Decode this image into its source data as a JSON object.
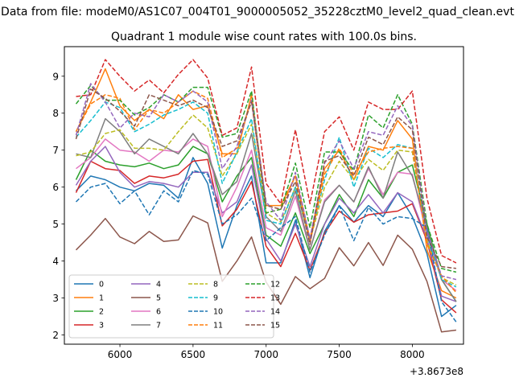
{
  "chart_data": {
    "type": "line",
    "suptitle": "Data from file: modeM0/AS1C07_004T01_9000005052_35228cztM0_level2_quad_clean.evt",
    "title": "Quadrant 1 module wise count rates with 100.0s bins.",
    "xlabel": "",
    "ylabel": "",
    "x_offset_label": "+3.8673e8",
    "xlim": [
      5620,
      8350
    ],
    "ylim": [
      1.75,
      9.8
    ],
    "xticks": [
      6000,
      6500,
      7000,
      7500,
      8000
    ],
    "yticks": [
      2,
      3,
      4,
      5,
      6,
      7,
      8,
      9
    ],
    "grid": false,
    "legend_position": "lower-left",
    "legend_columns": 4,
    "x": [
      5700,
      5800,
      5900,
      6000,
      6100,
      6200,
      6300,
      6400,
      6500,
      6600,
      6700,
      6800,
      6900,
      7000,
      7100,
      7200,
      7300,
      7400,
      7500,
      7600,
      7700,
      7800,
      7900,
      8000,
      8100,
      8200,
      8300
    ],
    "series": [
      {
        "name": "0",
        "color": "#1f77b4",
        "dash": "solid",
        "values": [
          5.9,
          6.3,
          6.2,
          6.0,
          5.9,
          6.1,
          6.05,
          5.7,
          6.8,
          6.1,
          4.35,
          5.5,
          6.3,
          3.95,
          3.95,
          5.1,
          3.55,
          4.8,
          5.5,
          5.05,
          5.5,
          5.2,
          5.85,
          5.2,
          4.2,
          2.5,
          2.8
        ]
      },
      {
        "name": "1",
        "color": "#ff7f0e",
        "dash": "solid",
        "values": [
          7.5,
          8.3,
          9.2,
          8.2,
          7.8,
          8.1,
          7.85,
          8.5,
          8.1,
          8.2,
          6.9,
          6.9,
          8.5,
          5.5,
          5.5,
          6.3,
          4.6,
          6.5,
          7.0,
          6.2,
          7.1,
          7.0,
          7.8,
          7.3,
          4.3,
          3.2,
          3.0
        ]
      },
      {
        "name": "2",
        "color": "#2ca02c",
        "dash": "solid",
        "values": [
          6.2,
          7.0,
          6.7,
          6.6,
          6.55,
          6.65,
          6.5,
          6.6,
          7.1,
          6.9,
          5.6,
          6.3,
          6.8,
          4.7,
          4.4,
          5.3,
          4.2,
          5.0,
          5.8,
          5.2,
          6.2,
          5.7,
          6.4,
          6.6,
          5.0,
          3.5,
          2.9
        ]
      },
      {
        "name": "3",
        "color": "#d62728",
        "dash": "solid",
        "values": [
          5.85,
          6.7,
          6.5,
          6.45,
          6.1,
          6.3,
          6.25,
          6.35,
          6.7,
          6.75,
          4.95,
          5.4,
          6.15,
          4.4,
          3.85,
          4.75,
          3.75,
          4.75,
          5.35,
          5.05,
          5.25,
          5.3,
          5.35,
          5.55,
          4.55,
          2.95,
          2.6
        ]
      },
      {
        "name": "4",
        "color": "#9467bd",
        "dash": "solid",
        "values": [
          6.05,
          6.7,
          7.1,
          6.4,
          6.0,
          6.15,
          6.1,
          6.0,
          6.4,
          6.4,
          5.3,
          5.6,
          6.6,
          4.6,
          4.0,
          5.0,
          3.85,
          5.0,
          5.7,
          5.3,
          5.8,
          5.3,
          5.85,
          5.6,
          4.6,
          3.05,
          2.9
        ]
      },
      {
        "name": "5",
        "color": "#8c564b",
        "dash": "solid",
        "values": [
          4.3,
          4.7,
          5.15,
          4.65,
          4.47,
          4.8,
          4.53,
          4.57,
          5.22,
          5.03,
          3.45,
          4.0,
          4.65,
          3.43,
          2.83,
          3.58,
          3.25,
          3.53,
          4.36,
          3.87,
          4.5,
          3.88,
          4.7,
          4.32,
          3.45,
          2.08,
          2.13
        ]
      },
      {
        "name": "6",
        "color": "#e377c2",
        "dash": "solid",
        "values": [
          6.5,
          6.8,
          7.3,
          7.0,
          6.95,
          6.7,
          7.0,
          6.95,
          7.3,
          7.1,
          5.2,
          6.0,
          7.0,
          4.9,
          4.7,
          5.75,
          4.3,
          5.65,
          6.05,
          5.6,
          6.5,
          5.8,
          6.4,
          6.35,
          4.7,
          3.5,
          3.2
        ]
      },
      {
        "name": "7",
        "color": "#7f7f7f",
        "dash": "solid",
        "values": [
          6.9,
          6.8,
          7.85,
          7.5,
          6.9,
          7.3,
          7.1,
          6.9,
          7.45,
          6.9,
          5.8,
          6.15,
          7.45,
          5.2,
          4.8,
          5.9,
          4.3,
          5.6,
          6.05,
          5.6,
          6.55,
          5.7,
          6.95,
          6.3,
          4.9,
          3.5,
          2.9
        ]
      },
      {
        "name": "8",
        "color": "#bcbd22",
        "dash": "dashed",
        "values": [
          6.85,
          6.95,
          7.45,
          7.55,
          7.05,
          7.05,
          7.0,
          7.5,
          7.95,
          7.6,
          6.3,
          6.9,
          7.7,
          5.3,
          5.05,
          6.0,
          4.55,
          6.0,
          6.7,
          6.2,
          6.75,
          6.45,
          7.0,
          6.95,
          4.55,
          3.55,
          3.35
        ]
      },
      {
        "name": "9",
        "color": "#17becf",
        "dash": "dashed",
        "values": [
          7.35,
          7.8,
          8.3,
          8.15,
          7.5,
          7.7,
          7.95,
          8.1,
          8.3,
          8.0,
          6.1,
          6.95,
          7.85,
          5.1,
          5.0,
          6.0,
          4.6,
          6.2,
          7.35,
          6.0,
          7.05,
          6.8,
          7.15,
          7.05,
          4.7,
          3.5,
          3.3
        ]
      },
      {
        "name": "10",
        "color": "#1f77b4",
        "dash": "dashed",
        "values": [
          5.6,
          6.0,
          6.1,
          5.55,
          5.9,
          5.25,
          5.9,
          5.6,
          6.45,
          6.35,
          5.0,
          5.25,
          5.7,
          4.55,
          4.9,
          5.2,
          3.7,
          4.7,
          5.5,
          4.55,
          5.45,
          5.0,
          5.2,
          5.15,
          4.9,
          2.9,
          2.35
        ]
      },
      {
        "name": "11",
        "color": "#ff7f0e",
        "dash": "dashed",
        "values": [
          7.5,
          8.25,
          8.5,
          8.4,
          7.55,
          8.1,
          8.0,
          8.3,
          8.6,
          8.4,
          6.8,
          7.05,
          8.35,
          5.3,
          5.4,
          6.3,
          4.5,
          6.35,
          7.05,
          6.35,
          6.95,
          7.05,
          7.1,
          7.05,
          4.45,
          3.6,
          3.15
        ]
      },
      {
        "name": "12",
        "color": "#2ca02c",
        "dash": "dashed",
        "values": [
          8.25,
          8.75,
          8.35,
          8.35,
          7.95,
          8.15,
          8.5,
          8.3,
          8.7,
          8.7,
          7.35,
          7.45,
          8.6,
          5.3,
          5.4,
          6.65,
          4.9,
          6.95,
          6.95,
          6.45,
          7.95,
          7.6,
          8.5,
          7.7,
          5.0,
          3.8,
          3.7
        ]
      },
      {
        "name": "13",
        "color": "#d62728",
        "dash": "dashed",
        "values": [
          8.45,
          8.5,
          9.45,
          9.0,
          8.6,
          8.9,
          8.55,
          9.05,
          9.45,
          8.95,
          7.4,
          7.6,
          9.25,
          6.1,
          5.55,
          7.55,
          5.55,
          7.5,
          7.9,
          7.0,
          8.3,
          8.1,
          8.1,
          8.6,
          5.7,
          4.15,
          3.95
        ]
      },
      {
        "name": "14",
        "color": "#9467bd",
        "dash": "dashed",
        "values": [
          7.4,
          8.8,
          8.3,
          7.6,
          8.0,
          7.9,
          8.5,
          8.3,
          8.6,
          8.3,
          6.5,
          7.1,
          8.35,
          5.6,
          5.1,
          6.4,
          4.6,
          6.65,
          7.25,
          6.5,
          7.5,
          7.4,
          8.2,
          7.65,
          4.8,
          3.6,
          3.5
        ]
      },
      {
        "name": "15",
        "color": "#8c564b",
        "dash": "dashed",
        "values": [
          7.3,
          8.65,
          8.4,
          8.05,
          7.65,
          8.5,
          8.35,
          8.2,
          8.35,
          8.15,
          7.1,
          7.25,
          8.3,
          5.5,
          5.4,
          6.15,
          4.45,
          6.7,
          6.85,
          6.3,
          7.35,
          7.15,
          7.9,
          7.55,
          4.65,
          3.85,
          3.8
        ]
      }
    ]
  }
}
